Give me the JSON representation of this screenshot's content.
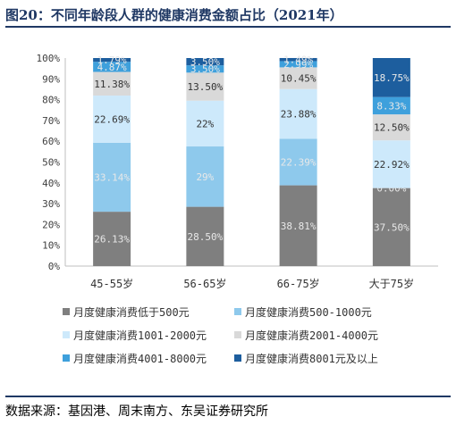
{
  "title": "图20：不同年龄段人群的健康消费金额占比（2021年）",
  "source": "数据来源：基因港、周末南方、东吴证券研究所",
  "chart_data": {
    "type": "bar",
    "stacked": true,
    "categories": [
      "45-55岁",
      "56-65岁",
      "66-75岁",
      "大于75岁"
    ],
    "ylim": [
      0,
      100
    ],
    "yticks": [
      "0%",
      "10%",
      "20%",
      "30%",
      "40%",
      "50%",
      "60%",
      "70%",
      "80%",
      "90%",
      "100%"
    ],
    "series": [
      {
        "name": "月度健康消费低于500元",
        "color": "#7f7f7f",
        "values": [
          26.13,
          28.5,
          38.81,
          37.5
        ],
        "labels": [
          "26.13%",
          "28.50%",
          "38.81%",
          "37.50%"
        ]
      },
      {
        "name": "月度健康消费500-1000元",
        "color": "#8ec9ec",
        "values": [
          33.14,
          29,
          22.39,
          0
        ],
        "labels": [
          "33.14%",
          "29%",
          "22.39%",
          "0.00%"
        ]
      },
      {
        "name": "月度健康消费1001-2000元",
        "color": "#cde9fb",
        "values": [
          22.69,
          22,
          23.88,
          22.92
        ],
        "labels": [
          "22.69%",
          "22%",
          "23.88%",
          "22.92%"
        ]
      },
      {
        "name": "月度健康消费2001-4000元",
        "color": "#d9d9d9",
        "values": [
          11.38,
          13.5,
          10.45,
          12.5
        ],
        "labels": [
          "11.38%",
          "13.50%",
          "10.45%",
          "12.50%"
        ]
      },
      {
        "name": "月度健康消费4001-8000元",
        "color": "#3ea0dc",
        "values": [
          4.87,
          3.5,
          2.99,
          8.33
        ],
        "labels": [
          "4.87%",
          "3.50%",
          "2.99%",
          "8.33%"
        ]
      },
      {
        "name": "月度健康消费8001元及以上",
        "color": "#1d5e9e",
        "values": [
          1.79,
          3.5,
          1.49,
          18.75
        ],
        "labels": [
          "1.79%",
          "3.50%",
          "1.49%",
          "18.75%"
        ]
      }
    ],
    "legend_position": "bottom"
  }
}
